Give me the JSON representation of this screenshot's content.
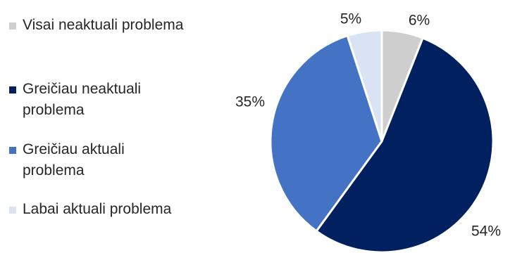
{
  "chart_data": {
    "type": "pie",
    "title": "",
    "categories": [
      "Visai neaktuali problema",
      "Greičiau neaktuali problema",
      "Greičiau aktuali problema",
      "Labai aktuali problema"
    ],
    "values": [
      6,
      54,
      35,
      5
    ],
    "labels": [
      "6%",
      "54%",
      "35%",
      "5%"
    ],
    "colors": [
      "#cfcfcf",
      "#002060",
      "#4472c4",
      "#dae3f3"
    ],
    "legend_position": "left",
    "start_angle": "12 o'clock",
    "direction": "clockwise"
  }
}
